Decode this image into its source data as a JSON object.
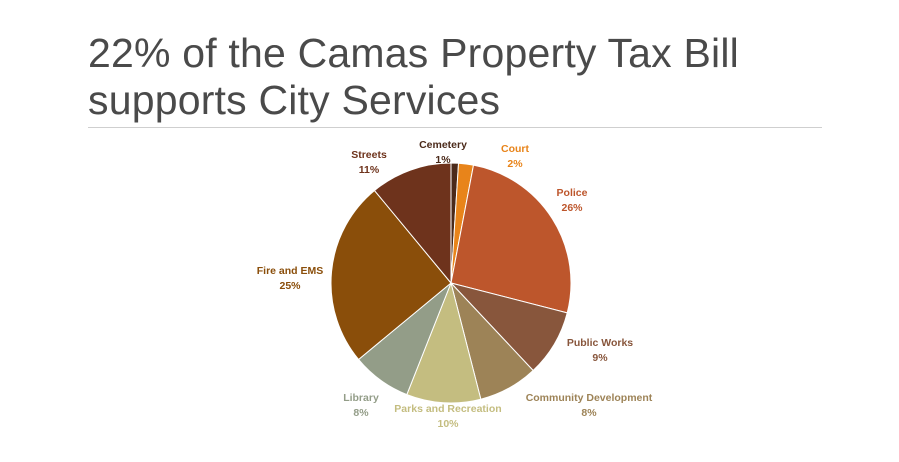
{
  "slide": {
    "title_line1": "22% of the Camas Property Tax Bill",
    "title_line2": "supports City Services"
  },
  "chart_data": {
    "type": "pie",
    "slices": [
      {
        "name": "Cemetery",
        "value": 1,
        "label": "1%",
        "color": "#4b2a1a"
      },
      {
        "name": "Court",
        "value": 2,
        "label": "2%",
        "color": "#e8841a"
      },
      {
        "name": "Police",
        "value": 26,
        "label": "26%",
        "color": "#bd562c"
      },
      {
        "name": "Public Works",
        "value": 9,
        "label": "9%",
        "color": "#88563c"
      },
      {
        "name": "Community Development",
        "value": 8,
        "label": "8%",
        "color": "#9d8357"
      },
      {
        "name": "Parks and Recreation",
        "value": 10,
        "label": "10%",
        "color": "#c4bd80"
      },
      {
        "name": "Library",
        "value": 8,
        "label": "8%",
        "color": "#939d88"
      },
      {
        "name": "Fire and EMS",
        "value": 25,
        "label": "25%",
        "color": "#8a4e0a"
      },
      {
        "name": "Streets",
        "value": 11,
        "label": "11%",
        "color": "#6e331c"
      }
    ]
  }
}
